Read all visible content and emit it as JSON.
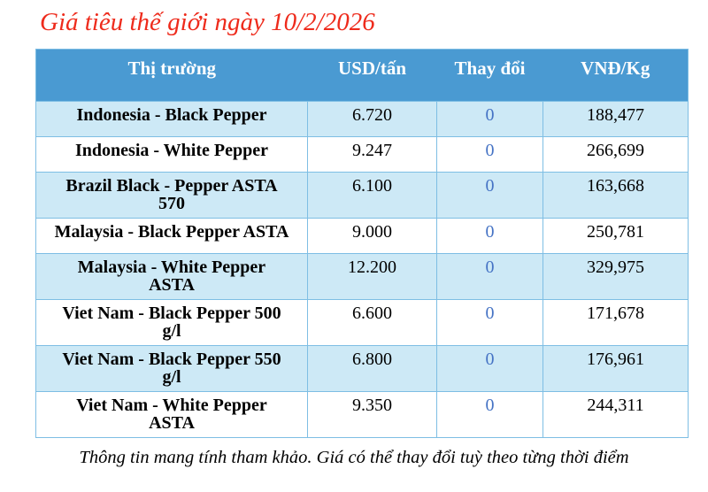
{
  "title": "Giá tiêu thế giới ngày 10/2/2026",
  "table": {
    "columns": [
      "Thị trường",
      "USD/tấn",
      "Thay đổi",
      "VNĐ/Kg"
    ],
    "rows": [
      {
        "market": "Indonesia - Black Pepper",
        "usd": "6.720",
        "change": "0",
        "vnd": "188,477"
      },
      {
        "market": "Indonesia - White Pepper",
        "usd": "9.247",
        "change": "0",
        "vnd": "266,699"
      },
      {
        "market": "Brazil Black - Pepper ASTA 570",
        "usd": "6.100",
        "change": "0",
        "vnd": "163,668"
      },
      {
        "market": "Malaysia - Black Pepper ASTA",
        "usd": "9.000",
        "change": "0",
        "vnd": "250,781"
      },
      {
        "market": "Malaysia - White Pepper ASTA",
        "usd": "12.200",
        "change": "0",
        "vnd": "329,975"
      },
      {
        "market": "Viet Nam - Black Pepper 500 g/l",
        "usd": "6.600",
        "change": "0",
        "vnd": "171,678"
      },
      {
        "market": "Viet Nam - Black Pepper 550 g/l",
        "usd": "6.800",
        "change": "0",
        "vnd": "176,961"
      },
      {
        "market": "Viet Nam - White Pepper ASTA",
        "usd": "9.350",
        "change": "0",
        "vnd": "244,311"
      }
    ]
  },
  "footer_note": "Thông tin mang tính tham khảo. Giá có thể thay đổi tuỳ theo từng thời điểm",
  "colors": {
    "header_bg": "#4a9ad2",
    "header_text": "#ffffff",
    "row_bg": "#ffffff",
    "row_alt_bg": "#cde9f6",
    "border": "#7ebee4",
    "title_red": "#ee2b1c",
    "change_blue": "#4472c4",
    "text": "#000000"
  }
}
